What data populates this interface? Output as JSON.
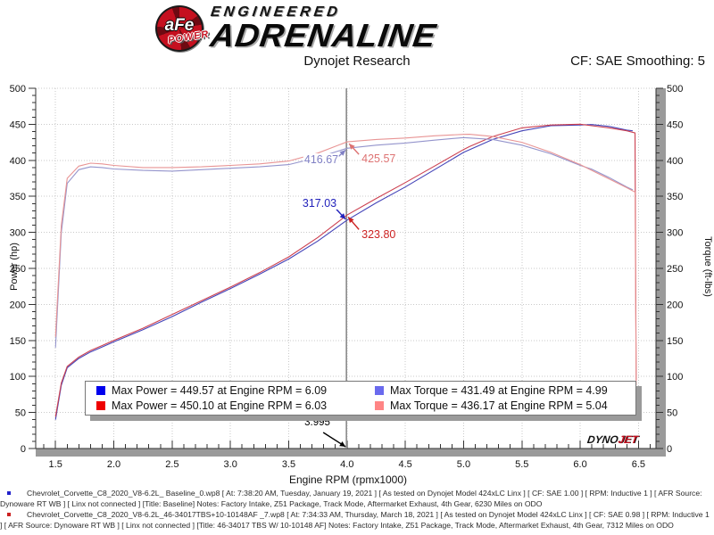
{
  "header": {
    "logo": {
      "afe_text": "aFe",
      "power_text": "POWER",
      "engineered": "ENGINEERED",
      "adrenaline": "ADRENALINE"
    },
    "title": "Dynojet Research",
    "smoothing": "CF: SAE Smoothing: 5"
  },
  "chart_data": {
    "type": "line",
    "title": "Dynojet Research",
    "xlabel": "Engine RPM (rpmx1000)",
    "ylabel_left": "Power (hp)",
    "ylabel_right": "Torque (ft-lbs)",
    "xlim": [
      1.5,
      6.5
    ],
    "xtick_step": 0.5,
    "x_minor_step": 0.1,
    "ylim": [
      0,
      500
    ],
    "ytick_step": 50,
    "y_minor_step": 10,
    "grid": true,
    "legend_position": "bottom-inside",
    "cursor_x": 3.995,
    "cursor_label": "3.995",
    "series": [
      {
        "name": "Power Baseline",
        "axis": "power",
        "color": "#4444b8",
        "x": [
          1.5,
          1.55,
          1.6,
          1.7,
          1.8,
          1.9,
          2.0,
          2.25,
          2.5,
          2.75,
          3.0,
          3.25,
          3.5,
          3.75,
          4.0,
          4.25,
          4.5,
          4.75,
          5.0,
          5.25,
          5.5,
          5.75,
          6.0,
          6.1,
          6.25,
          6.4,
          6.45
        ],
        "values": [
          40,
          88,
          112,
          125,
          134,
          141,
          148,
          165,
          183,
          203,
          222,
          242,
          263,
          288,
          317,
          341,
          363,
          387,
          411,
          429,
          441,
          448,
          449,
          449.6,
          447,
          442,
          441
        ]
      },
      {
        "name": "Power 46-34017 TBS + 10-10148 AF",
        "axis": "power",
        "color": "#cc4050",
        "x": [
          1.5,
          1.55,
          1.6,
          1.7,
          1.8,
          1.9,
          2.0,
          2.25,
          2.5,
          2.75,
          3.0,
          3.25,
          3.5,
          3.75,
          4.0,
          4.25,
          4.5,
          4.75,
          5.0,
          5.05,
          5.25,
          5.5,
          5.75,
          6.0,
          6.1,
          6.25,
          6.4,
          6.47,
          6.48
        ],
        "values": [
          44,
          91,
          114,
          127,
          136,
          143,
          150,
          167,
          186,
          205,
          224,
          244,
          266,
          293,
          324,
          347,
          369,
          392,
          415,
          419,
          433,
          445,
          449,
          450.1,
          448,
          445,
          441,
          438,
          95
        ]
      },
      {
        "name": "Torque Baseline",
        "axis": "torque",
        "color": "#9494cc",
        "x": [
          1.5,
          1.55,
          1.6,
          1.7,
          1.8,
          1.9,
          2.0,
          2.25,
          2.5,
          2.75,
          3.0,
          3.25,
          3.5,
          3.75,
          4.0,
          4.25,
          4.5,
          4.75,
          5.0,
          5.25,
          5.5,
          5.75,
          6.0,
          6.1,
          6.25,
          6.4,
          6.45
        ],
        "values": [
          140,
          300,
          368,
          387,
          391,
          390,
          388,
          386,
          385,
          387,
          389,
          391,
          394,
          404,
          416.7,
          421,
          424,
          428,
          431.5,
          429,
          421,
          409,
          393,
          387.7,
          376,
          363,
          359
        ]
      },
      {
        "name": "Torque 46-34017 TBS + 10-10148 AF",
        "axis": "torque",
        "color": "#e89494",
        "x": [
          1.5,
          1.55,
          1.6,
          1.7,
          1.8,
          1.9,
          2.0,
          2.25,
          2.5,
          2.75,
          3.0,
          3.25,
          3.5,
          3.75,
          4.0,
          4.25,
          4.5,
          4.75,
          5.0,
          5.05,
          5.25,
          5.5,
          5.75,
          6.0,
          6.1,
          6.25,
          6.4,
          6.47,
          6.48
        ],
        "values": [
          155,
          310,
          375,
          392,
          396,
          395,
          393,
          390,
          390,
          391,
          393,
          395,
          399,
          410,
          425.6,
          429,
          431,
          434,
          436,
          436.2,
          433,
          425,
          411,
          394,
          386,
          374,
          362,
          356,
          88
        ]
      }
    ],
    "annotations": [
      {
        "text": "416.67",
        "value": 416.67,
        "color": "#8080c4",
        "side": "left-below"
      },
      {
        "text": "425.57",
        "value": 425.57,
        "color": "#dd7272",
        "side": "right-below"
      },
      {
        "text": "317.03",
        "value": 317.03,
        "color": "#2222bb",
        "side": "left-above"
      },
      {
        "text": "323.80",
        "value": 323.8,
        "color": "#cc2222",
        "side": "right-below2"
      }
    ],
    "legend": [
      {
        "color": "#0000ee",
        "label": "Max Power = 449.57 at Engine RPM = 6.09"
      },
      {
        "color": "#ee0000",
        "label": "Max Power = 450.10 at Engine RPM = 6.03"
      },
      {
        "color": "#6a6aee",
        "label": "Max Torque = 431.49 at Engine RPM = 4.99"
      },
      {
        "color": "#ff8585",
        "label": "Max Torque = 436.17 at Engine RPM = 5.04"
      }
    ]
  },
  "watermark": {
    "dyno": "DYNO",
    "jet": "JET"
  },
  "footnotes": [
    {
      "bullet_color": "#2222cc",
      "text": "Chevrolet_Corvette_C8_2020_V8-6.2L_ Baseline_0.wp8 [ At: 7:38:20 AM, Tuesday, January 19, 2021 ] [ As tested on Dynojet Model 424xLC Linx ] [ CF: SAE 1.00 ] [ RPM: Inductive 1 ] [ AFR Source: Dynoware RT WB ] [ Linx not connected ] [Title: Baseline]  Notes: Factory Intake, Z51 Package, Track Mode, Aftermarket Exhaust, 4th Gear, 6230 Miles on ODO"
    },
    {
      "bullet_color": "#cc2222",
      "text": "Chevrolet_Corvette_C8_2020_V8-6.2L_46-34017TBS+10-10148AF _7.wp8 [ At: 7:34:33 AM, Thursday, March 18, 2021 ] [ As tested on Dynojet Model 424xLC Linx ] [ CF: SAE 0.98 ] [ RPM: Inductive 1 ] [ AFR Source: Dynoware RT WB ] [ Linx not connected ] [Title: 46-34017 TBS W/ 10-10148 AF]  Notes: Factory Intake, Z51 Package, Track Mode, Aftermarket Exhaust, 4th Gear, 7312 Miles on ODO"
    }
  ]
}
